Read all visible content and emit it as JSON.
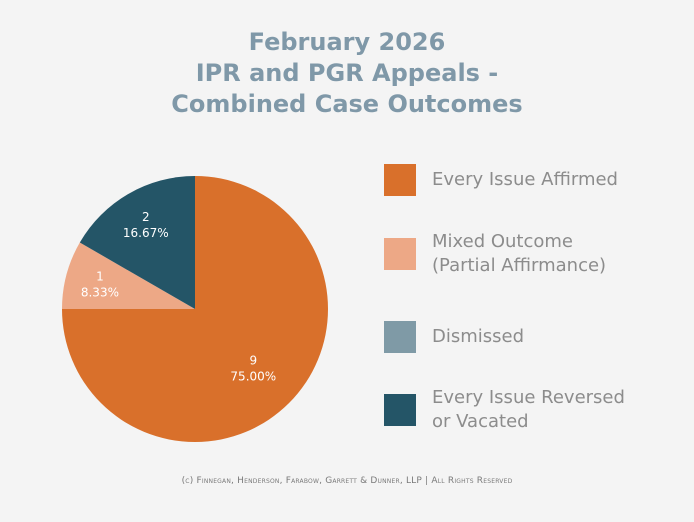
{
  "chart_data": {
    "type": "pie",
    "title_lines": [
      "February 2026",
      "IPR and PGR Appeals -",
      "Combined Case Outcomes"
    ],
    "slices": [
      {
        "label": "Every Issue Affirmed",
        "value": 9,
        "percent_label": "75.00%",
        "color": "#d9702b"
      },
      {
        "label": "Mixed Outcome\n(Partial Affirmance)",
        "value": 1,
        "percent_label": "8.33%",
        "color": "#eda886"
      },
      {
        "label": "Dismissed",
        "value": 0,
        "percent_label": "",
        "color": "#7f9aa6"
      },
      {
        "label": "Every Issue Reversed\nor Vacated",
        "value": 2,
        "percent_label": "16.67%",
        "color": "#245567"
      }
    ],
    "legend_position": "right"
  },
  "footer": "(c) Finnegan, Henderson, Farabow, Garrett & Dunner, LLP | All Rights Reserved"
}
